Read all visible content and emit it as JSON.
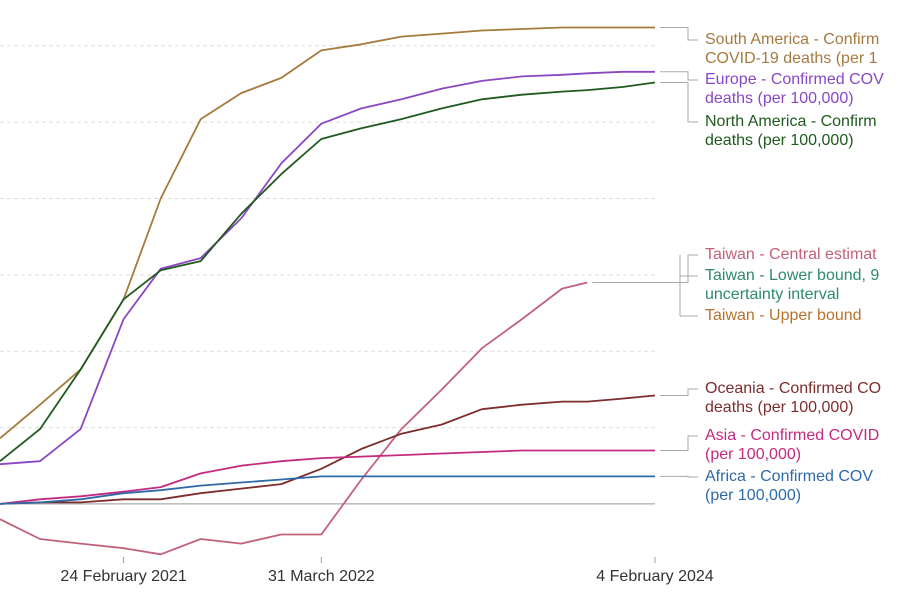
{
  "chart_data": {
    "type": "line",
    "x": [
      "2020-06-19",
      "2020-09-08",
      "2020-11-29",
      "2021-02-24",
      "2021-05-10",
      "2021-07-30",
      "2021-10-20",
      "2022-01-09",
      "2022-03-31",
      "2022-06-20",
      "2022-09-09",
      "2022-11-30",
      "2023-02-19",
      "2023-05-11",
      "2023-07-31",
      "2023-09-20",
      "2023-11-30",
      "2024-02-04"
    ],
    "xlim": [
      "2020-06-19",
      "2024-02-04"
    ],
    "xticks": [
      {
        "value": "2021-02-24",
        "label": "24 February 2021"
      },
      {
        "value": "2022-03-31",
        "label": "31 March 2022"
      },
      {
        "value": "2024-02-04",
        "label": "4 February 2024"
      }
    ],
    "ylim": [
      -40,
      330
    ],
    "yticks": [
      0,
      50,
      100,
      150,
      200,
      250,
      300
    ],
    "grid": true,
    "series": [
      {
        "name": [
          "South America - Confirm",
          "COVID-19 deaths (per 1"
        ],
        "color": "#a57a3e",
        "values": [
          43,
          65,
          88,
          134,
          200,
          252,
          269,
          279,
          297,
          301,
          306,
          308,
          310,
          311,
          312,
          312,
          312,
          312
        ]
      },
      {
        "name": [
          "Europe - Confirmed COV",
          "deaths (per 100,000)"
        ],
        "color": "#8a47c2",
        "values": [
          26,
          28,
          49,
          121,
          154,
          161,
          187,
          223,
          249,
          259,
          265,
          272,
          277,
          280,
          281,
          282,
          283,
          283
        ]
      },
      {
        "name": [
          "North America - Confirm",
          "deaths (per 100,000)"
        ],
        "color": "#1f5a1f",
        "values": [
          28,
          49,
          88,
          134,
          153,
          159,
          190,
          216,
          239,
          246,
          252,
          259,
          265,
          268,
          270,
          271,
          273,
          276
        ]
      },
      {
        "name": [
          "Taiwan - Central estimat"
        ],
        "color": "#c2617a",
        "values": [
          -10,
          -23,
          -26,
          -29,
          -33,
          -23,
          -26,
          -20,
          -20,
          16,
          49,
          75,
          102,
          121,
          141,
          145,
          null,
          null
        ]
      },
      {
        "name": [
          "Oceania - Confirmed CO",
          "deaths (per 100,000)"
        ],
        "color": "#7d2d2d",
        "values": [
          0,
          1,
          1,
          3,
          3,
          7,
          10,
          13,
          23,
          36,
          46,
          52,
          62,
          65,
          67,
          67,
          69,
          71
        ]
      },
      {
        "name": [
          "Asia - Confirmed COVID",
          "(per 100,000)"
        ],
        "color": "#c42a80",
        "values": [
          0,
          3,
          5,
          8,
          11,
          20,
          25,
          28,
          30,
          31,
          32,
          33,
          34,
          35,
          35,
          35,
          35,
          35
        ]
      },
      {
        "name": [
          "Africa - Confirmed COV",
          "(per 100,000)"
        ],
        "color": "#2f6aa8",
        "values": [
          0,
          1,
          3,
          7,
          9,
          12,
          14,
          16,
          18,
          18,
          18,
          18,
          18,
          18,
          18,
          18,
          18,
          18
        ]
      }
    ],
    "labels": [
      {
        "text": [
          "Taiwan - Lower bound, 9",
          "uncertainty interval"
        ],
        "color": "#2e8a6e"
      },
      {
        "text": [
          "Taiwan - Upper bound"
        ],
        "color": "#b8722c"
      }
    ]
  }
}
